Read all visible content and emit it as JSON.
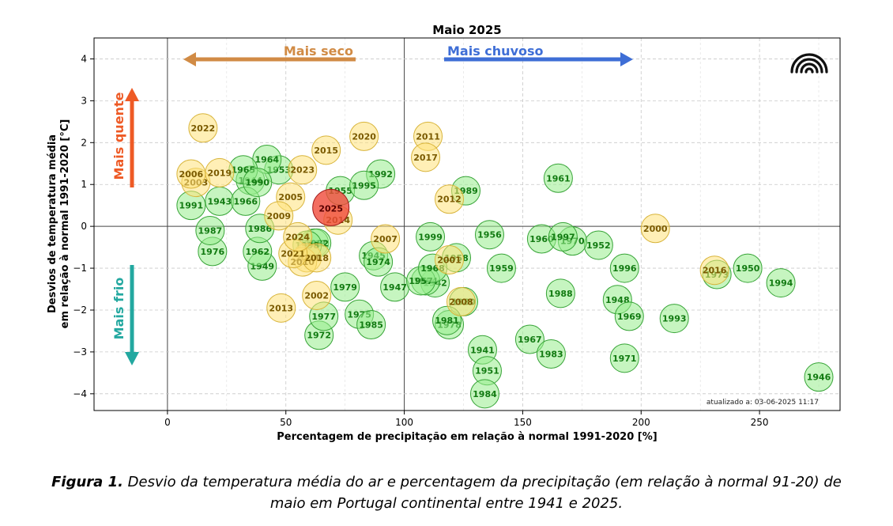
{
  "chart_data": {
    "type": "scatter",
    "title": "Maio 2025",
    "xlabel": "Percentagem de precipitação em relação à normal 1991-2020 [%]",
    "ylabel_line1": "Desvios de temperatura média",
    "ylabel_line2": "em relação à normal 1991-2020 [°C]",
    "xlim": [
      -31,
      284
    ],
    "ylim": [
      -4.4,
      4.5
    ],
    "xticks": [
      "0",
      "50",
      "100",
      "150",
      "200",
      "250"
    ],
    "xtick_values": [
      0,
      50,
      100,
      150,
      200,
      250
    ],
    "yticks": [
      "4",
      "3",
      "2",
      "1",
      "0",
      "−1",
      "−2",
      "−3",
      "−4"
    ],
    "ytick_values": [
      4,
      3,
      2,
      1,
      0,
      -1,
      -2,
      -3,
      -4
    ],
    "grid": true,
    "colors": {
      "warm_fill": "#ffe27a",
      "warm_edge": "#d8b43a",
      "warm_text": "#7a5a00",
      "cold_fill": "#98ec8c",
      "cold_edge": "#37a437",
      "cold_text": "#117a11",
      "highlight_fill": "#f04a3a",
      "highlight_edge": "#a01818",
      "highlight_text": "#5a0000",
      "dry": "#d18b45",
      "wet": "#3e6ed6",
      "hot": "#ee5a25",
      "cold": "#23a8a0"
    },
    "annotations": {
      "dry": "Mais seco",
      "wet": "Mais chuvoso",
      "hot": "Mais quente",
      "cold": "Mais frio",
      "updated": "atualizado a: 03-06-2025 11:17"
    },
    "points": [
      {
        "year": "1941",
        "x": 133,
        "y": -2.95,
        "c": "cold"
      },
      {
        "year": "1942",
        "x": 113,
        "y": -1.35,
        "c": "cold"
      },
      {
        "year": "1943",
        "x": 22,
        "y": 0.6,
        "c": "cold"
      },
      {
        "year": "1944",
        "x": 35,
        "y": 1.1,
        "c": "cold"
      },
      {
        "year": "1945",
        "x": 87,
        "y": -0.7,
        "c": "cold"
      },
      {
        "year": "1946",
        "x": 275,
        "y": -3.6,
        "c": "cold"
      },
      {
        "year": "1947",
        "x": 96,
        "y": -1.45,
        "c": "cold"
      },
      {
        "year": "1948",
        "x": 190,
        "y": -1.75,
        "c": "cold"
      },
      {
        "year": "1949",
        "x": 40,
        "y": -0.95,
        "c": "cold"
      },
      {
        "year": "1950",
        "x": 245,
        "y": -1.0,
        "c": "cold"
      },
      {
        "year": "1951",
        "x": 135,
        "y": -3.45,
        "c": "cold"
      },
      {
        "year": "1952",
        "x": 182,
        "y": -0.45,
        "c": "cold"
      },
      {
        "year": "1953",
        "x": 47,
        "y": 1.35,
        "c": "cold"
      },
      {
        "year": "1954",
        "x": 109,
        "y": -1.3,
        "c": "cold"
      },
      {
        "year": "1955",
        "x": 73,
        "y": 0.85,
        "c": "cold"
      },
      {
        "year": "1956",
        "x": 136,
        "y": -0.2,
        "c": "cold"
      },
      {
        "year": "1957",
        "x": 107,
        "y": -1.3,
        "c": "cold"
      },
      {
        "year": "1958",
        "x": 122,
        "y": -0.75,
        "c": "cold"
      },
      {
        "year": "1959",
        "x": 141,
        "y": -1.0,
        "c": "cold"
      },
      {
        "year": "1960",
        "x": 158,
        "y": -0.3,
        "c": "cold"
      },
      {
        "year": "1961",
        "x": 165,
        "y": 1.15,
        "c": "cold"
      },
      {
        "year": "1962",
        "x": 38,
        "y": -0.6,
        "c": "cold"
      },
      {
        "year": "1963",
        "x": 62,
        "y": -0.4,
        "c": "cold"
      },
      {
        "year": "1964",
        "x": 42,
        "y": 1.6,
        "c": "cold"
      },
      {
        "year": "1965",
        "x": 32,
        "y": 1.35,
        "c": "cold"
      },
      {
        "year": "1966",
        "x": 33,
        "y": 0.6,
        "c": "cold"
      },
      {
        "year": "1967",
        "x": 153,
        "y": -2.7,
        "c": "cold"
      },
      {
        "year": "1968",
        "x": 112,
        "y": -1.0,
        "c": "cold"
      },
      {
        "year": "1969",
        "x": 195,
        "y": -2.15,
        "c": "cold"
      },
      {
        "year": "1970",
        "x": 171,
        "y": -0.35,
        "c": "cold"
      },
      {
        "year": "1971",
        "x": 193,
        "y": -3.15,
        "c": "cold"
      },
      {
        "year": "1972",
        "x": 64,
        "y": -2.6,
        "c": "cold"
      },
      {
        "year": "1973",
        "x": 232,
        "y": -1.15,
        "c": "cold"
      },
      {
        "year": "1974",
        "x": 89,
        "y": -0.85,
        "c": "cold"
      },
      {
        "year": "1975",
        "x": 81,
        "y": -2.1,
        "c": "cold"
      },
      {
        "year": "1976",
        "x": 19,
        "y": -0.6,
        "c": "cold"
      },
      {
        "year": "1977",
        "x": 66,
        "y": -2.15,
        "c": "cold"
      },
      {
        "year": "1978",
        "x": 119,
        "y": -2.35,
        "c": "cold"
      },
      {
        "year": "1979",
        "x": 75,
        "y": -1.45,
        "c": "cold"
      },
      {
        "year": "1980",
        "x": 125,
        "y": -1.8,
        "c": "cold"
      },
      {
        "year": "1981",
        "x": 118,
        "y": -2.25,
        "c": "cold"
      },
      {
        "year": "1982",
        "x": 63,
        "y": -0.4,
        "c": "cold"
      },
      {
        "year": "1983",
        "x": 162,
        "y": -3.05,
        "c": "cold"
      },
      {
        "year": "1984",
        "x": 134,
        "y": -4.0,
        "c": "cold"
      },
      {
        "year": "1985",
        "x": 86,
        "y": -2.35,
        "c": "cold"
      },
      {
        "year": "1986",
        "x": 39,
        "y": -0.05,
        "c": "cold"
      },
      {
        "year": "1987",
        "x": 18,
        "y": -0.1,
        "c": "cold"
      },
      {
        "year": "1988",
        "x": 166,
        "y": -1.6,
        "c": "cold"
      },
      {
        "year": "1989",
        "x": 126,
        "y": 0.85,
        "c": "cold"
      },
      {
        "year": "1990",
        "x": 38,
        "y": 1.05,
        "c": "cold"
      },
      {
        "year": "1991",
        "x": 10,
        "y": 0.5,
        "c": "cold"
      },
      {
        "year": "1992",
        "x": 90,
        "y": 1.25,
        "c": "cold"
      },
      {
        "year": "1993",
        "x": 214,
        "y": -2.2,
        "c": "cold"
      },
      {
        "year": "1994",
        "x": 259,
        "y": -1.35,
        "c": "cold"
      },
      {
        "year": "1995",
        "x": 83,
        "y": 0.98,
        "c": "cold"
      },
      {
        "year": "1996",
        "x": 193,
        "y": -1.0,
        "c": "cold"
      },
      {
        "year": "1997",
        "x": 167,
        "y": -0.25,
        "c": "cold"
      },
      {
        "year": "1998",
        "x": 59,
        "y": -0.45,
        "c": "cold"
      },
      {
        "year": "1999",
        "x": 111,
        "y": -0.25,
        "c": "cold"
      },
      {
        "year": "2000",
        "x": 206,
        "y": -0.05,
        "c": "warm"
      },
      {
        "year": "2001",
        "x": 119,
        "y": -0.8,
        "c": "warm"
      },
      {
        "year": "2002",
        "x": 63,
        "y": -1.65,
        "c": "warm"
      },
      {
        "year": "2003",
        "x": 12,
        "y": 1.05,
        "c": "warm"
      },
      {
        "year": "2004",
        "x": 59,
        "y": -0.75,
        "c": "warm"
      },
      {
        "year": "2005",
        "x": 52,
        "y": 0.7,
        "c": "warm"
      },
      {
        "year": "2006",
        "x": 10,
        "y": 1.25,
        "c": "warm"
      },
      {
        "year": "2007",
        "x": 92,
        "y": -0.3,
        "c": "warm"
      },
      {
        "year": "2008",
        "x": 124,
        "y": -1.8,
        "c": "warm"
      },
      {
        "year": "2009",
        "x": 47,
        "y": 0.25,
        "c": "warm"
      },
      {
        "year": "2010",
        "x": 57,
        "y": -0.85,
        "c": "warm"
      },
      {
        "year": "2011",
        "x": 110,
        "y": 2.15,
        "c": "warm"
      },
      {
        "year": "2012",
        "x": 119,
        "y": 0.65,
        "c": "warm"
      },
      {
        "year": "2013",
        "x": 48,
        "y": -1.95,
        "c": "warm"
      },
      {
        "year": "2014",
        "x": 72,
        "y": 0.15,
        "c": "warm"
      },
      {
        "year": "2015",
        "x": 67,
        "y": 1.82,
        "c": "warm"
      },
      {
        "year": "2016",
        "x": 231,
        "y": -1.05,
        "c": "warm"
      },
      {
        "year": "2017",
        "x": 109,
        "y": 1.65,
        "c": "warm"
      },
      {
        "year": "2018",
        "x": 63,
        "y": -0.75,
        "c": "warm"
      },
      {
        "year": "2019",
        "x": 22,
        "y": 1.28,
        "c": "warm"
      },
      {
        "year": "2020",
        "x": 83,
        "y": 2.15,
        "c": "warm"
      },
      {
        "year": "2021",
        "x": 53,
        "y": -0.65,
        "c": "warm"
      },
      {
        "year": "2022",
        "x": 15,
        "y": 2.35,
        "c": "warm"
      },
      {
        "year": "2023",
        "x": 57,
        "y": 1.35,
        "c": "warm"
      },
      {
        "year": "2024",
        "x": 55,
        "y": -0.25,
        "c": "warm"
      },
      {
        "year": "2025",
        "x": 69,
        "y": 0.45,
        "c": "highlight"
      }
    ]
  },
  "caption": {
    "label": "Figura 1.",
    "line1": " Desvio da temperatura média do ar e percentagem da precipitação (em relação à normal 91-20) de",
    "line2": "maio em Portugal continental entre 1941 e 2025."
  }
}
